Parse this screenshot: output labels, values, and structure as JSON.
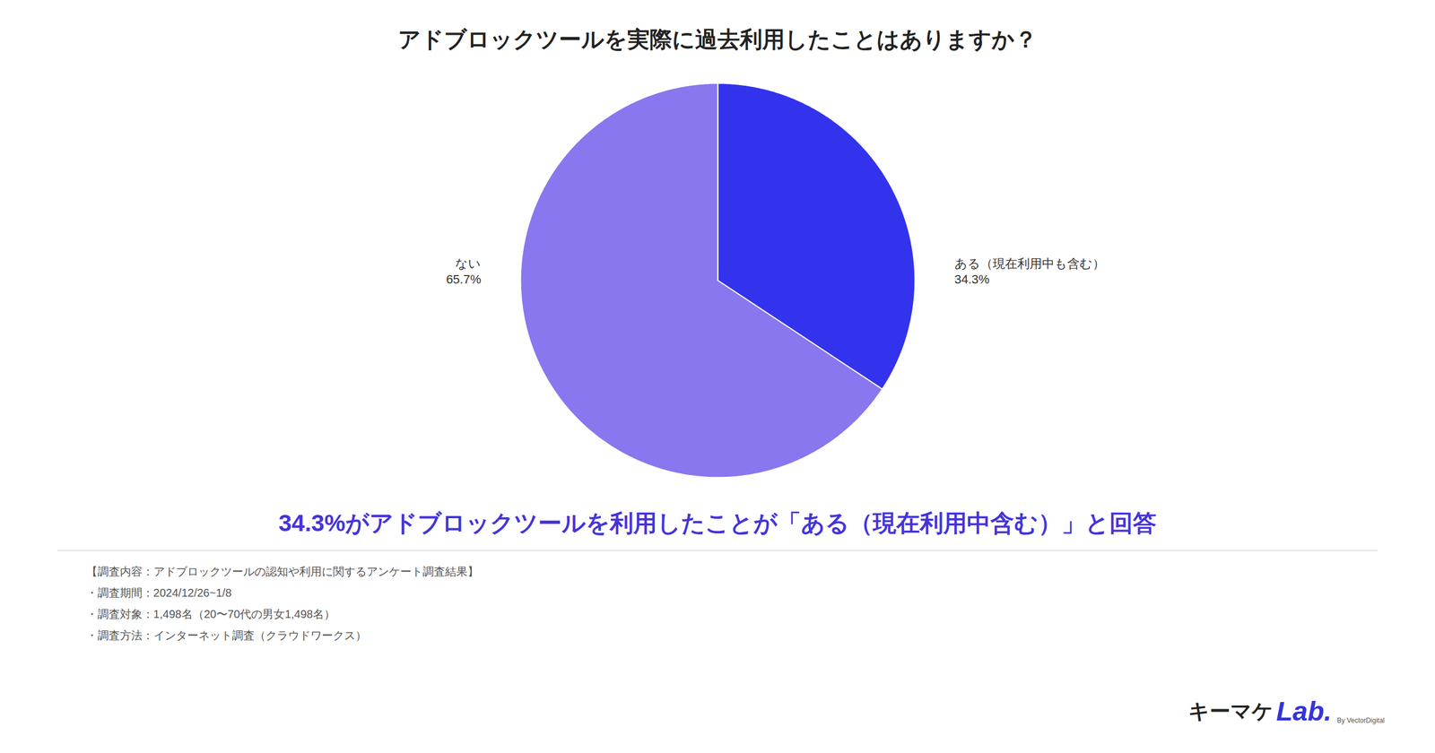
{
  "chart_data": {
    "type": "pie",
    "title": "アドブロックツールを実際に過去利用したことはありますか？",
    "categories": [
      "ある（現在利用中も含む）",
      "ない"
    ],
    "values": [
      34.3,
      65.7
    ],
    "value_labels": [
      "34.3%",
      "65.7%"
    ],
    "colors": [
      "#3333ee",
      "#8877ee"
    ],
    "data_labels": true,
    "annotations": [
      "34.3%がアドブロックツールを利用したことが「ある（現在利用中含む）」と回答",
      "【調査内容：アドブロックツールの認知や利用に関するアンケート調査結果】",
      "・調査期間：2024/12/26~1/8",
      "・調査対象：1,498名（20〜70代の男女1,498名）",
      "・調査方法：インターネット調査（クラウドワークス）",
      "キーマケ",
      "Lab.",
      "By VectorDigital"
    ]
  }
}
